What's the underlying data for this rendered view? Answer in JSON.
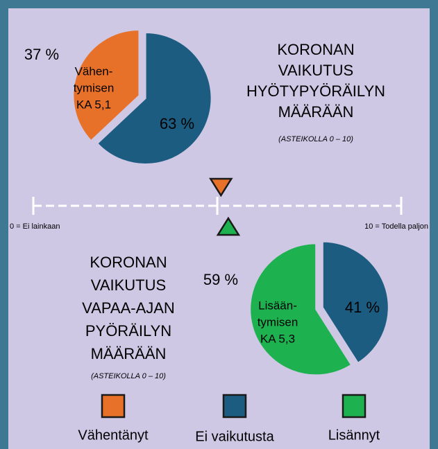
{
  "chart_data": [
    {
      "type": "pie",
      "title": [
        "KORONAN",
        "VAIKUTUS",
        "HYÖTYPYÖRÄILYN",
        "MÄÄRÄÄN"
      ],
      "subtitle": "(ASTEIKOLLA 0 – 10)",
      "values": [
        37,
        63
      ],
      "value_labels": [
        "37 %",
        "63 %"
      ],
      "colors": [
        "#e8712a",
        "#1b5c80"
      ],
      "annotation": [
        "Vähen-",
        "tymisen",
        "KA 5,1"
      ]
    },
    {
      "type": "pie",
      "title": [
        "KORONAN",
        "VAIKUTUS",
        "VAPAA-AJAN",
        "PYÖRÄILYN",
        "MÄÄRÄÄN"
      ],
      "subtitle": "(ASTEIKOLLA 0 – 10)",
      "values": [
        59,
        41
      ],
      "value_labels": [
        "59 %",
        "41 %"
      ],
      "colors": [
        "#1db14f",
        "#1b5c80"
      ],
      "annotation": [
        "Lisään-",
        "tymisen",
        "KA 5,3"
      ]
    }
  ],
  "scale": {
    "xlim": [
      0,
      10
    ],
    "xticks": [
      {
        "value": 0,
        "label": "0 = Ei lainkaan"
      },
      {
        "value": 5,
        "label": null
      },
      {
        "value": 10,
        "label": "10 = Todella paljon"
      }
    ],
    "markers": [
      {
        "value": 5.1,
        "color": "#e8712a",
        "direction": "down"
      },
      {
        "value": 5.3,
        "color": "#1db14f",
        "direction": "up"
      }
    ]
  },
  "legend": [
    {
      "name": "Vähentänyt",
      "color": "#e8712a"
    },
    {
      "name": "Ei vaikutusta",
      "color": "#1b5c80"
    },
    {
      "name": "Lisännyt",
      "color": "#1db14f"
    }
  ]
}
